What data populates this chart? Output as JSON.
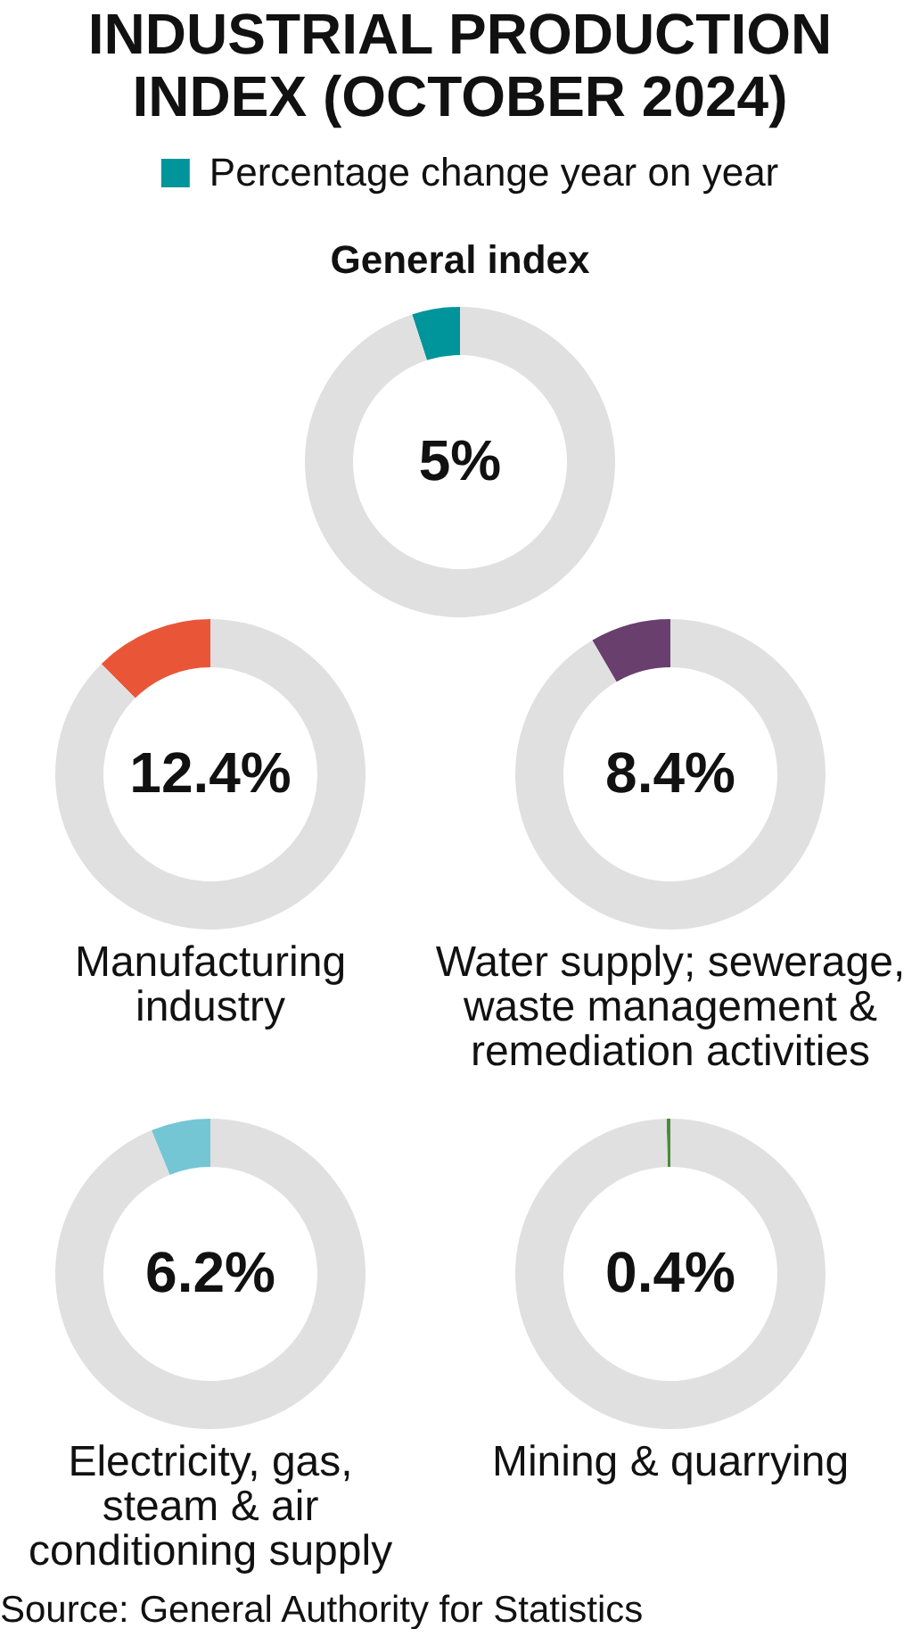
{
  "chart_data": [
    {
      "type": "donut",
      "title": "INDUSTRIAL PRODUCTION INDEX (OCTOBER 2024)",
      "subtitle": "General index",
      "legend": "top",
      "categories": [
        "Percentage change year on year",
        null
      ],
      "values": [
        5,
        95
      ],
      "colors": [
        "#00959a",
        "#e0e0e0"
      ],
      "value_labels": [
        "5%",
        null
      ]
    },
    {
      "type": "donut",
      "title": "Manufacturing industry",
      "categories": [
        null,
        null
      ],
      "values": [
        12.4,
        87.6
      ],
      "colors": [
        "#e95637",
        "#e0e0e0"
      ],
      "value_labels": [
        "12.4%",
        null
      ]
    },
    {
      "type": "donut",
      "title": "Water supply; sewerage, waste management & remediation activities",
      "categories": [
        null,
        null
      ],
      "values": [
        8.4,
        91.6
      ],
      "colors": [
        "#693f6d",
        "#e0e0e0"
      ],
      "value_labels": [
        "8.4%",
        null
      ]
    },
    {
      "type": "donut",
      "title": "Electricity, gas, steam & air conditioning supply",
      "categories": [
        null,
        null
      ],
      "values": [
        6.2,
        93.8
      ],
      "colors": [
        "#74c6d4",
        "#e0e0e0"
      ],
      "value_labels": [
        "6.2%",
        null
      ]
    },
    {
      "type": "donut",
      "title": "Mining & quarrying",
      "categories": [
        null,
        null
      ],
      "values": [
        0.4,
        99.6
      ],
      "colors": [
        "#4b8b3b",
        "#e0e0e0"
      ],
      "value_labels": [
        "0.4%",
        null
      ],
      "annotations": [
        "Source: General Authority for Statistics"
      ]
    }
  ]
}
